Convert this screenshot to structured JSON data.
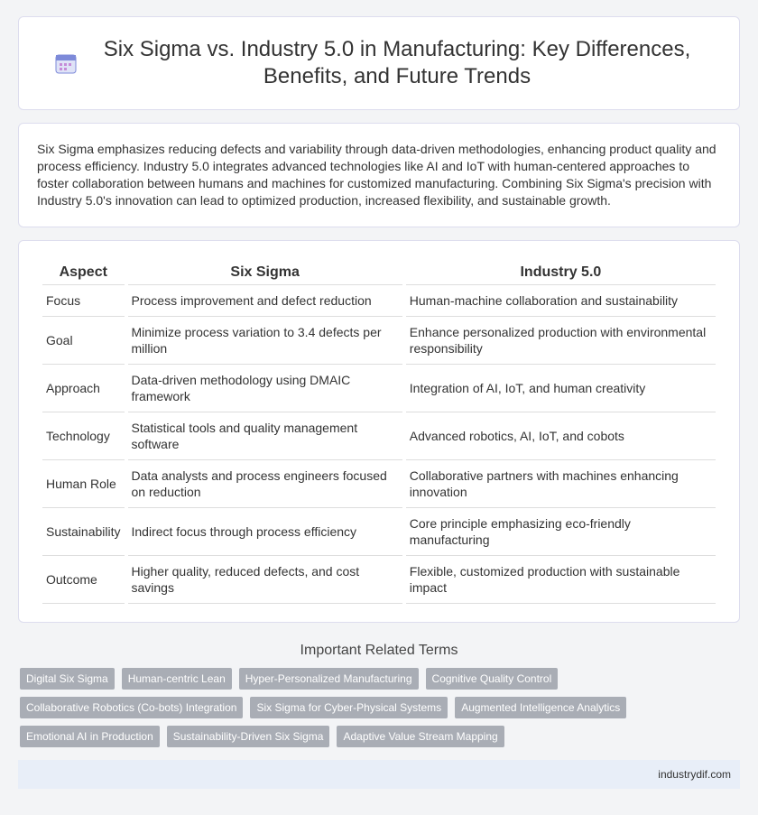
{
  "header": {
    "title": "Six Sigma vs. Industry 5.0 in Manufacturing: Key Differences, Benefits, and Future Trends"
  },
  "intro": "Six Sigma emphasizes reducing defects and variability through data-driven methodologies, enhancing product quality and process efficiency. Industry 5.0 integrates advanced technologies like AI and IoT with human-centered approaches to foster collaboration between humans and machines for customized manufacturing. Combining Six Sigma's precision with Industry 5.0's innovation can lead to optimized production, increased flexibility, and sustainable growth.",
  "table": {
    "columns": [
      "Aspect",
      "Six Sigma",
      "Industry 5.0"
    ],
    "rows": [
      [
        "Focus",
        "Process improvement and defect reduction",
        "Human-machine collaboration and sustainability"
      ],
      [
        "Goal",
        "Minimize process variation to 3.4 defects per million",
        "Enhance personalized production with environmental responsibility"
      ],
      [
        "Approach",
        "Data-driven methodology using DMAIC framework",
        "Integration of AI, IoT, and human creativity"
      ],
      [
        "Technology",
        "Statistical tools and quality management software",
        "Advanced robotics, AI, IoT, and cobots"
      ],
      [
        "Human Role",
        "Data analysts and process engineers focused on reduction",
        "Collaborative partners with machines enhancing innovation"
      ],
      [
        "Sustainability",
        "Indirect focus through process efficiency",
        "Core principle emphasizing eco-friendly manufacturing"
      ],
      [
        "Outcome",
        "Higher quality, reduced defects, and cost savings",
        "Flexible, customized production with sustainable impact"
      ]
    ]
  },
  "related": {
    "title": "Important Related Terms",
    "terms": [
      "Digital Six Sigma",
      "Human-centric Lean",
      "Hyper-Personalized Manufacturing",
      "Cognitive Quality Control",
      "Collaborative Robotics (Co-bots) Integration",
      "Six Sigma for Cyber-Physical Systems",
      "Augmented Intelligence Analytics",
      "Emotional AI in Production",
      "Sustainability-Driven Six Sigma",
      "Adaptive Value Stream Mapping"
    ]
  },
  "footer": "industrydif.com"
}
